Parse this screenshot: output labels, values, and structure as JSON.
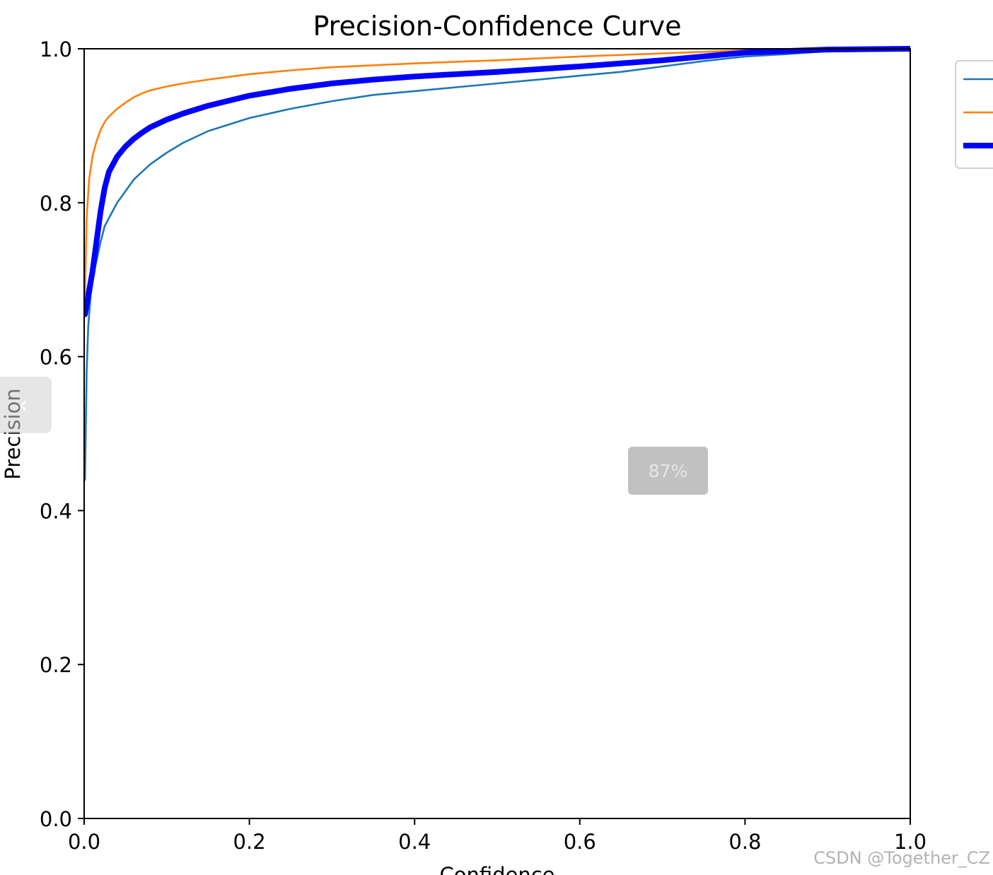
{
  "chart_data": {
    "type": "line",
    "title": "Precision-Confidence Curve",
    "xlabel": "Confidence",
    "ylabel": "Precision",
    "xlim": [
      0.0,
      1.0
    ],
    "ylim": [
      0.0,
      1.0
    ],
    "xticks": [
      "0.0",
      "0.2",
      "0.4",
      "0.6",
      "0.8",
      "1.0"
    ],
    "yticks": [
      "0.0",
      "0.2",
      "0.4",
      "0.6",
      "0.8",
      "1.0"
    ],
    "grid": false,
    "legend_position": "upper right outside (clipped)",
    "series": [
      {
        "color": "#1f77b4",
        "width": "thin",
        "x": [
          0.001,
          0.003,
          0.005,
          0.008,
          0.012,
          0.016,
          0.02,
          0.025,
          0.03,
          0.04,
          0.05,
          0.06,
          0.07,
          0.08,
          0.1,
          0.12,
          0.15,
          0.2,
          0.25,
          0.3,
          0.35,
          0.4,
          0.45,
          0.5,
          0.55,
          0.6,
          0.65,
          0.7,
          0.75,
          0.8,
          0.85,
          0.9,
          0.95,
          1.0
        ],
        "values": [
          0.44,
          0.58,
          0.64,
          0.68,
          0.71,
          0.73,
          0.75,
          0.77,
          0.78,
          0.8,
          0.815,
          0.83,
          0.84,
          0.85,
          0.865,
          0.878,
          0.893,
          0.91,
          0.922,
          0.932,
          0.94,
          0.945,
          0.95,
          0.955,
          0.96,
          0.965,
          0.97,
          0.977,
          0.984,
          0.99,
          0.993,
          0.997,
          0.999,
          1.0
        ]
      },
      {
        "color": "#ff7f0e",
        "width": "thin",
        "x": [
          0.001,
          0.003,
          0.006,
          0.01,
          0.015,
          0.02,
          0.025,
          0.03,
          0.04,
          0.05,
          0.06,
          0.07,
          0.08,
          0.1,
          0.12,
          0.15,
          0.2,
          0.25,
          0.3,
          0.4,
          0.5,
          0.6,
          0.7,
          0.8,
          0.9,
          1.0
        ],
        "values": [
          0.68,
          0.78,
          0.83,
          0.86,
          0.88,
          0.895,
          0.905,
          0.912,
          0.922,
          0.93,
          0.937,
          0.942,
          0.946,
          0.951,
          0.955,
          0.96,
          0.967,
          0.972,
          0.976,
          0.981,
          0.985,
          0.99,
          0.994,
          0.998,
          1.0,
          1.0
        ]
      },
      {
        "color": "#0000ff",
        "width": "thick",
        "x": [
          0.001,
          0.005,
          0.01,
          0.015,
          0.02,
          0.025,
          0.03,
          0.04,
          0.05,
          0.06,
          0.07,
          0.08,
          0.1,
          0.12,
          0.15,
          0.2,
          0.25,
          0.3,
          0.35,
          0.4,
          0.5,
          0.6,
          0.7,
          0.8,
          0.9,
          1.0
        ],
        "values": [
          0.655,
          0.68,
          0.71,
          0.75,
          0.79,
          0.82,
          0.84,
          0.86,
          0.873,
          0.883,
          0.891,
          0.898,
          0.908,
          0.916,
          0.926,
          0.939,
          0.948,
          0.955,
          0.96,
          0.964,
          0.97,
          0.977,
          0.985,
          0.995,
          0.999,
          1.0
        ]
      }
    ]
  },
  "overlay": {
    "zoom_level": "87%",
    "prev_icon": "‹",
    "watermark": "CSDN @Together_CZ"
  }
}
